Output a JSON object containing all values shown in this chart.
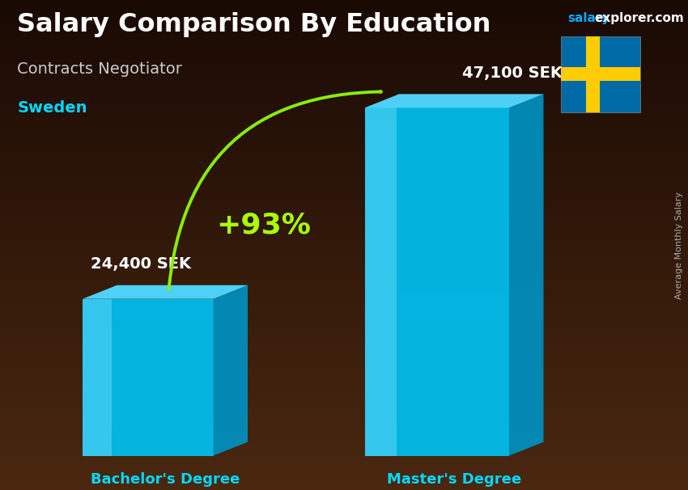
{
  "title": "Salary Comparison By Education",
  "subtitle": "Contracts Negotiator",
  "country": "Sweden",
  "watermark_salary": "salary",
  "watermark_rest": "explorer.com",
  "ylabel": "Average Monthly Salary",
  "categories": [
    "Bachelor's Degree",
    "Master's Degree"
  ],
  "values": [
    24400,
    47100
  ],
  "value_labels": [
    "24,400 SEK",
    "47,100 SEK"
  ],
  "pct_change": "+93%",
  "bar_color_main": "#00c0f0",
  "bar_color_highlight": "#70e0ff",
  "bar_color_side": "#0090c0",
  "bar_color_top": "#50d8ff",
  "bg_top": "#1a0a04",
  "bg_bottom": "#3d2010",
  "title_color": "#ffffff",
  "subtitle_color": "#cccccc",
  "country_color": "#00d8ff",
  "watermark_salary_color": "#00aaff",
  "watermark_rest_color": "#ffffff",
  "value_color": "#ffffff",
  "xlabel_color": "#00d8ff",
  "pct_color": "#aaff00",
  "arrow_color": "#88ee00",
  "rotlabel_color": "#aaaaaa",
  "flag_blue": "#006AA7",
  "flag_yellow": "#FECC02",
  "figsize": [
    8.5,
    6.06
  ],
  "dpi": 100
}
